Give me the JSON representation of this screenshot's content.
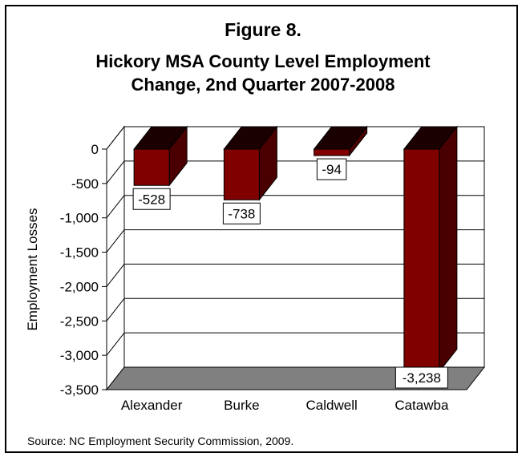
{
  "figure_label": "Figure 8.",
  "title_line1": "Hickory MSA County Level Employment",
  "title_line2": "Change, 2nd Quarter 2007-2008",
  "source": "Source: NC Employment Security Commission, 2009.",
  "colors": {
    "bar_front": "#800000",
    "bar_side": "#4a0000",
    "bar_top": "#1a0000",
    "floor": "#808080",
    "grid": "#000000"
  },
  "chart_data": {
    "type": "bar",
    "style": "3d-column",
    "title": "Hickory MSA County Level Employment Change, 2nd Quarter 2007-2008",
    "xlabel": "",
    "ylabel": "Employment Losses",
    "categories": [
      "Alexander",
      "Burke",
      "Caldwell",
      "Catawba"
    ],
    "values": [
      -528,
      -738,
      -94,
      -3238
    ],
    "data_labels": [
      "-528",
      "-738",
      "-94",
      "-3,238"
    ],
    "ylim": [
      -3500,
      0
    ],
    "yticks": [
      0,
      -500,
      -1000,
      -1500,
      -2000,
      -2500,
      -3000,
      -3500
    ],
    "ytick_labels": [
      "0",
      "-500",
      "-1,000",
      "-1,500",
      "-2,000",
      "-2,500",
      "-3,000",
      "-3,500"
    ],
    "grid": true,
    "legend": "none"
  }
}
